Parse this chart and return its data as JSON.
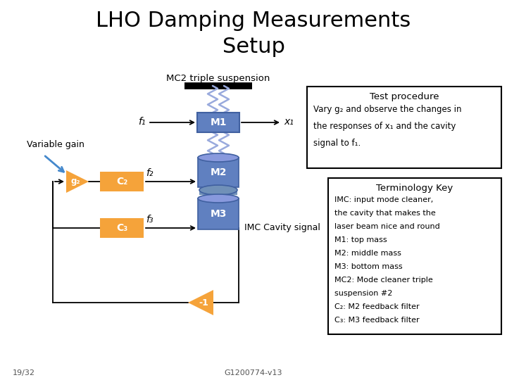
{
  "title_line1": "LHO Damping Measurements",
  "title_line2": "Setup",
  "title_fontsize": 22,
  "bg_color": "#ffffff",
  "orange_color": "#f5a33a",
  "blue_mass_color": "#6080c0",
  "blue_mass_light": "#8899dd",
  "blue_mass_dark": "#4060a0",
  "blue_conn_color": "#7090b8",
  "text_color": "#000000",
  "blue_arrow_color": "#4488cc",
  "wire_color": "#99aadd",
  "test_box": {
    "title": "Test procedure",
    "lines": [
      "Vary g₂ and observe the changes in",
      "the responses of x₁ and the cavity",
      "signal to f₁."
    ]
  },
  "term_box": {
    "title": "Terminology Key",
    "lines": [
      "IMC: input mode cleaner,",
      "the cavity that makes the",
      "laser beam nice and round",
      "M1: top mass",
      "M2: middle mass",
      "M3: bottom mass",
      "MC2: Mode cleaner triple",
      "suspension #2",
      "C₂: M2 feedback filter",
      "C₃: M3 feedback filter"
    ]
  },
  "footer_left": "19/32",
  "footer_center": "G1200774-v13",
  "mc2_label": "MC2 triple suspension",
  "imc_label": "IMC Cavity signal",
  "var_gain_label": "Variable gain"
}
